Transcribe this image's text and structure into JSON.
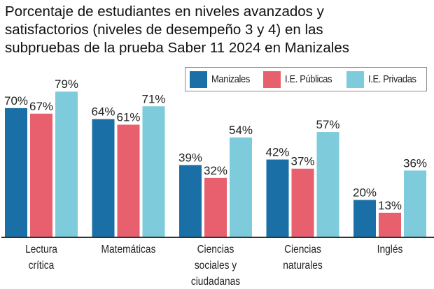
{
  "chart_data": {
    "type": "bar",
    "title": "Porcentaje de estudiantes en niveles avanzados y satisfactorios (niveles de desempeño 3 y 4) en las subpruebas de la prueba Saber 11 2024 en Manizales",
    "title_lines": [
      "Porcentaje de estudiantes en niveles avanzados y",
      "satisfactorios (niveles de desempeño 3 y 4) en las",
      "subpruebas de la prueba Saber 11 2024 en Manizales"
    ],
    "categories": [
      "Lectura crítica",
      "Matemáticas",
      "Ciencias sociales y ciudadanas",
      "Ciencias naturales",
      "Inglés"
    ],
    "category_lines": [
      [
        "Lectura",
        "crítica"
      ],
      [
        "Matemáticas"
      ],
      [
        "Ciencias",
        "sociales y",
        "ciudadanas"
      ],
      [
        "Ciencias",
        "naturales"
      ],
      [
        "Inglés"
      ]
    ],
    "series": [
      {
        "name": "Manizales",
        "color": "#1a6fa6",
        "values": [
          70,
          64,
          39,
          42,
          20
        ]
      },
      {
        "name": "I.E. Públicas",
        "color": "#e8606e",
        "values": [
          67,
          61,
          32,
          37,
          13
        ]
      },
      {
        "name": "I.E. Privadas",
        "color": "#7ecbdb",
        "values": [
          79,
          71,
          54,
          57,
          36
        ]
      }
    ],
    "value_suffix": "%",
    "xlabel": "",
    "ylabel": "",
    "ylim": [
      0,
      80
    ],
    "grid": false,
    "legend_position": "top-right"
  }
}
